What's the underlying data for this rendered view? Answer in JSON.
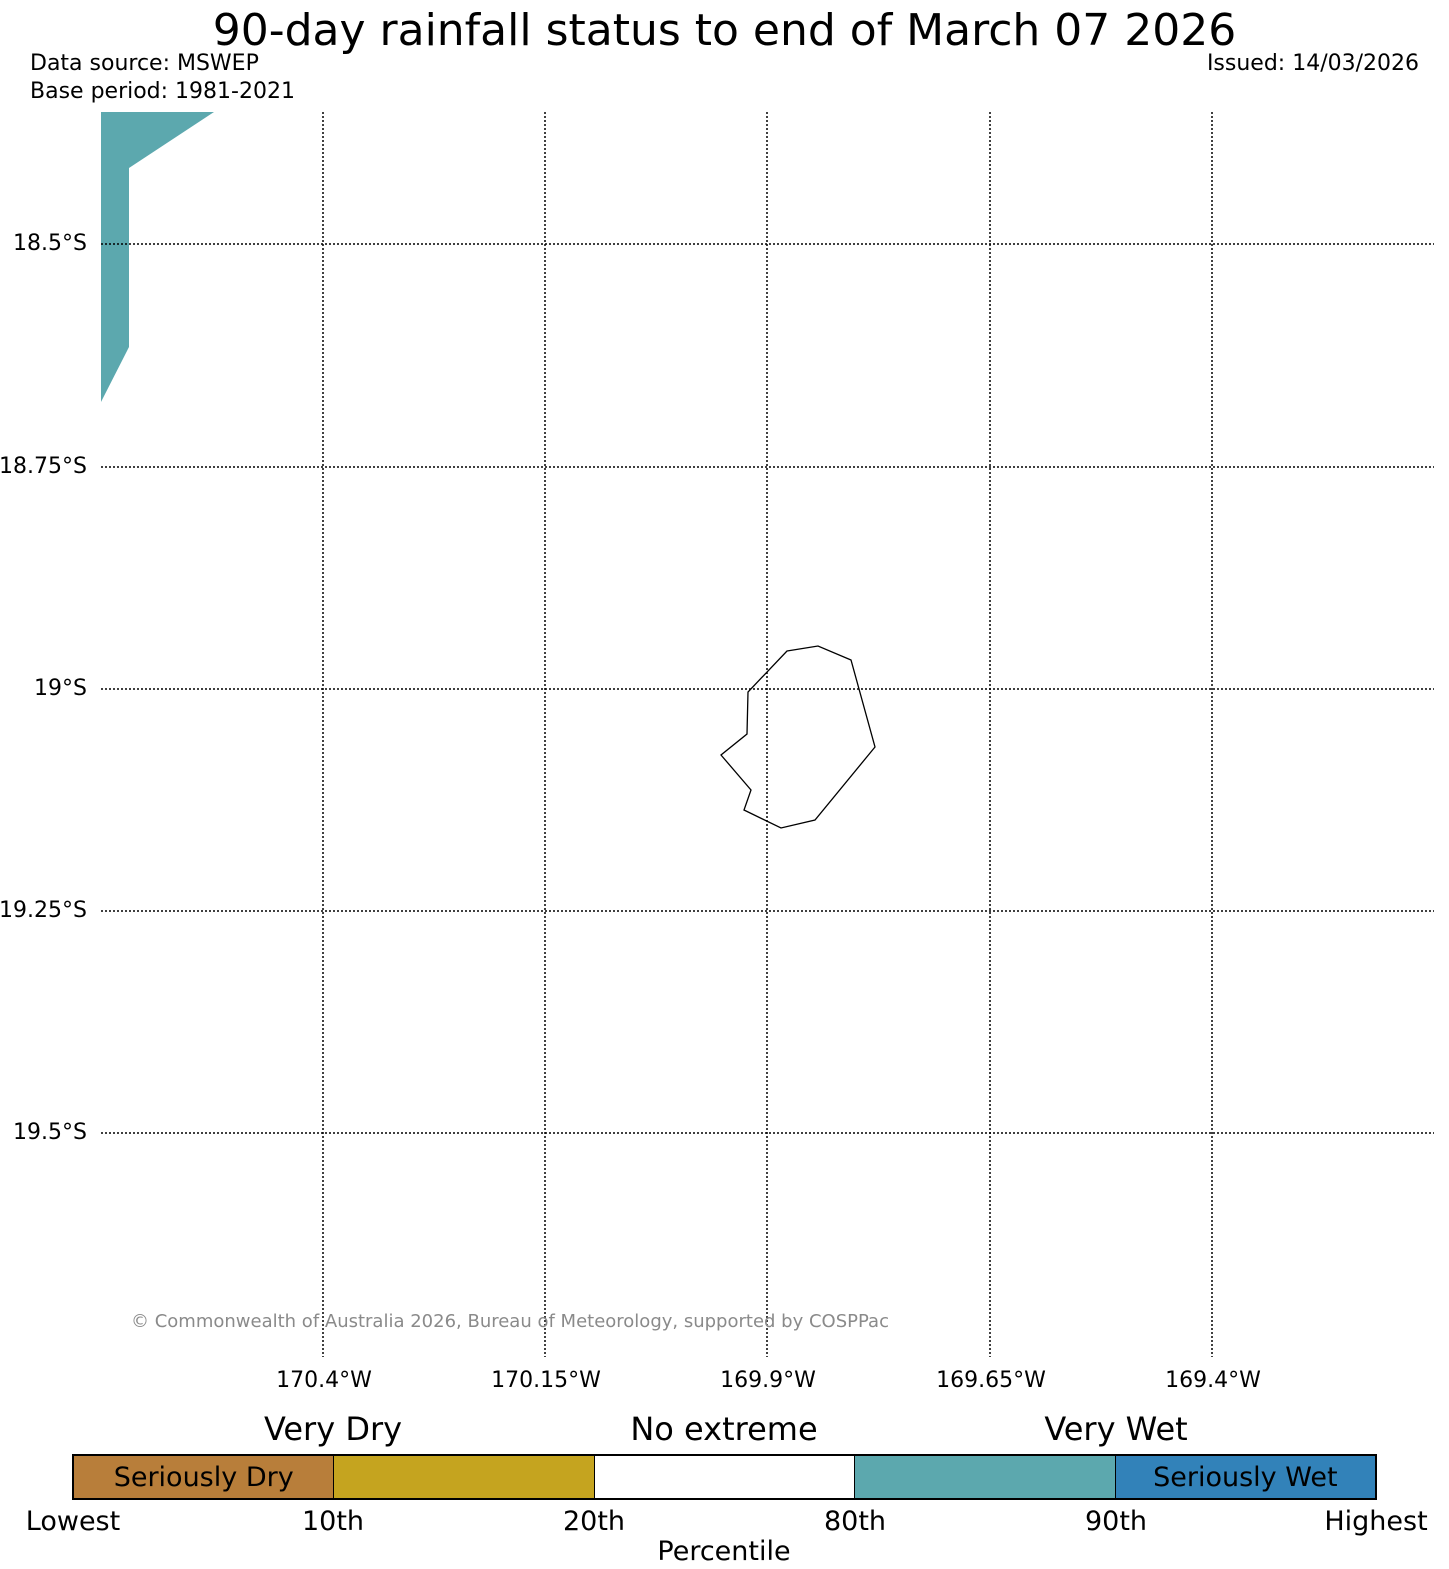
{
  "header": {
    "title": "90-day rainfall status to end of March 07 2026",
    "data_source": "Data source: MSWEP",
    "base_period": "Base period: 1981-2021",
    "issued": "Issued: 14/03/2026"
  },
  "map": {
    "lat_labels": [
      "18.5°S",
      "18.75°S",
      "19°S",
      "19.25°S",
      "19.5°S"
    ],
    "lon_labels": [
      "170.4°W",
      "170.15°W",
      "169.9°W",
      "169.65°W",
      "169.4°W"
    ],
    "lat_values": [
      -18.5,
      -18.75,
      -19.0,
      -19.25,
      -19.5
    ],
    "lon_values": [
      -170.4,
      -170.15,
      -169.9,
      -169.65,
      -169.4
    ],
    "gridlines": true,
    "shaded_region": {
      "category": "Very Wet",
      "color": "#5ca8ae"
    },
    "island_outline_color": "#000000",
    "copyright": "© Commonwealth of Australia 2026, Bureau of Meteorology, supported by COSPPac"
  },
  "legend": {
    "headers": [
      "Very Dry",
      "No extreme",
      "Very Wet"
    ],
    "segments": [
      {
        "label": "Seriously Dry",
        "color": "#b87e3a"
      },
      {
        "label": "",
        "color": "#c5a41f"
      },
      {
        "label": "",
        "color": "#ffffff"
      },
      {
        "label": "",
        "color": "#5ca8ae"
      },
      {
        "label": "Seriously Wet",
        "color": "#3282b9"
      }
    ],
    "ticks": [
      "Lowest",
      "10th",
      "20th",
      "80th",
      "90th",
      "Highest"
    ],
    "axis_label": "Percentile"
  }
}
